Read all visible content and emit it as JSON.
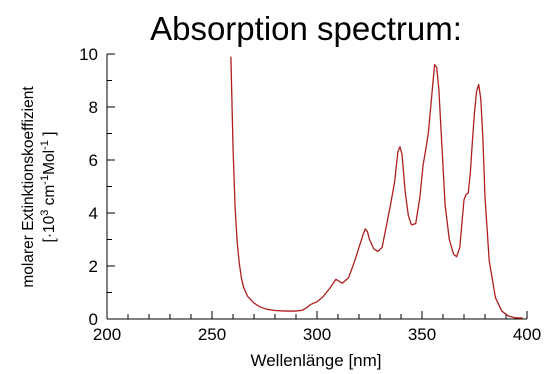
{
  "chart_data": {
    "type": "line",
    "title": "Absorption spectrum:",
    "xlabel": "Wellenlänge [nm]",
    "ylabel": {
      "line1": "molarer Extinktionskoeffizient",
      "line2_prefix": "[·10",
      "line2_exp1": "3",
      "line2_mid": " cm",
      "line2_exp2": "-1",
      "line2_mol": "Mol",
      "line2_exp3": "-1",
      "line2_suffix": " ]"
    },
    "xlim": [
      200,
      400
    ],
    "ylim": [
      0,
      10
    ],
    "x_ticks": [
      "200",
      "250",
      "300",
      "350",
      "400"
    ],
    "y_ticks": [
      "0",
      "2",
      "4",
      "6",
      "8",
      "10"
    ],
    "grid": false,
    "series": [
      {
        "color": "#b01e1e",
        "x": [
          259,
          260,
          261,
          262,
          263,
          264,
          265,
          267,
          270,
          273,
          276,
          280,
          285,
          290,
          293,
          295,
          297,
          300,
          303,
          306,
          309,
          312,
          315,
          318,
          320,
          322,
          323,
          324,
          325,
          327,
          329,
          331,
          333,
          335,
          337,
          338.5,
          339.5,
          340.5,
          342,
          343.5,
          345,
          347,
          349,
          350.5,
          352,
          353,
          354.5,
          356,
          357,
          358,
          359.5,
          361,
          363,
          365,
          366.5,
          368,
          369,
          370,
          371,
          372,
          373,
          374,
          375,
          376,
          377,
          378,
          379,
          380,
          382,
          385,
          388,
          391,
          394,
          398
        ],
        "y": [
          9.9,
          6.5,
          4.2,
          2.9,
          2.1,
          1.55,
          1.2,
          0.85,
          0.6,
          0.45,
          0.37,
          0.32,
          0.3,
          0.3,
          0.33,
          0.42,
          0.55,
          0.65,
          0.85,
          1.15,
          1.5,
          1.35,
          1.55,
          2.2,
          2.7,
          3.2,
          3.4,
          3.3,
          3.0,
          2.65,
          2.55,
          2.7,
          3.5,
          4.3,
          5.2,
          6.3,
          6.5,
          6.2,
          4.8,
          3.9,
          3.55,
          3.6,
          4.6,
          5.8,
          6.5,
          7.0,
          8.3,
          9.6,
          9.5,
          8.7,
          6.5,
          4.3,
          3.0,
          2.45,
          2.35,
          2.7,
          3.6,
          4.5,
          4.7,
          4.75,
          5.5,
          6.7,
          7.8,
          8.6,
          8.85,
          8.3,
          6.8,
          4.6,
          2.2,
          0.8,
          0.3,
          0.12,
          0.05,
          0.03
        ]
      }
    ]
  }
}
